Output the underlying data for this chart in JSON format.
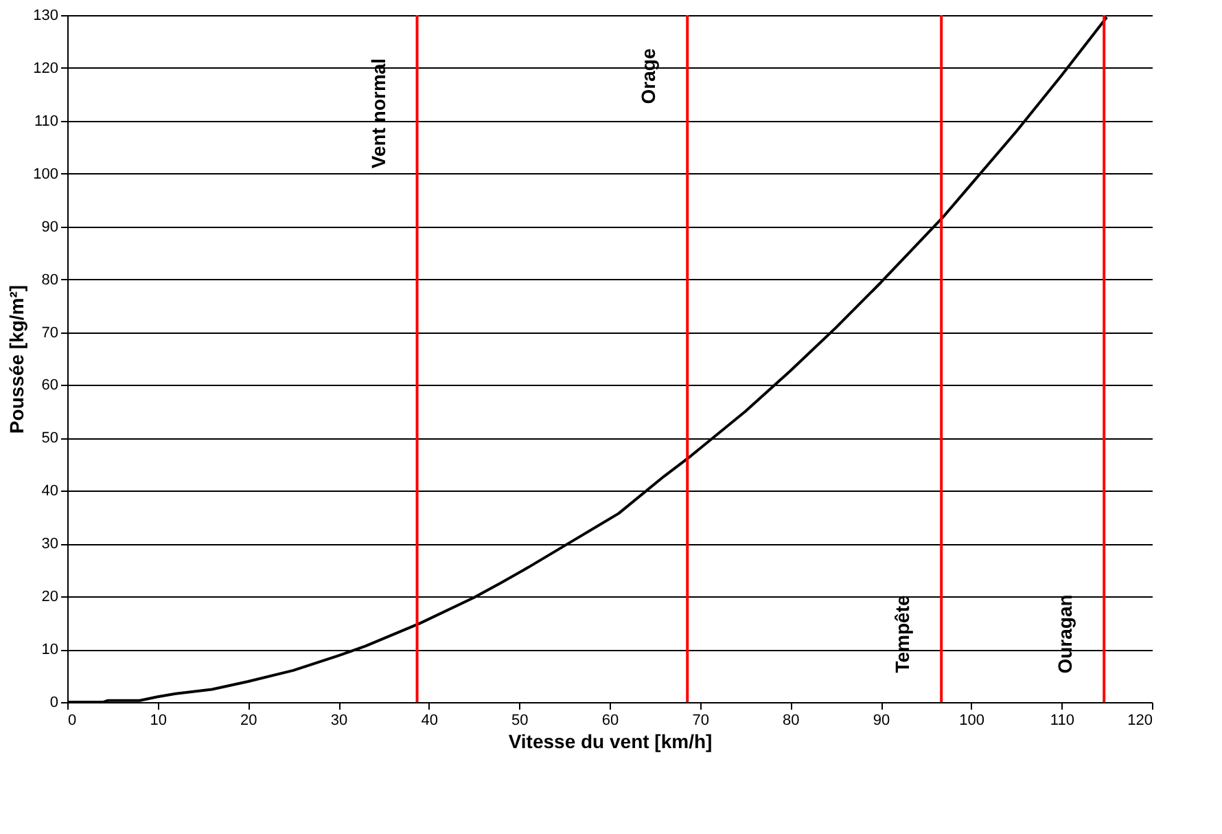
{
  "chart_data": {
    "type": "line",
    "xlabel": "Vitesse du vent [km/h]",
    "ylabel": "Poussée [kg/m²]",
    "x": [
      0,
      4,
      4.5,
      8,
      10,
      12,
      16,
      20,
      25,
      30,
      33,
      39,
      45,
      48,
      51,
      56,
      61,
      66,
      69,
      75,
      80,
      85,
      90,
      94,
      97,
      100,
      105,
      110,
      115
    ],
    "series": [
      {
        "color": "#000000",
        "values": [
          0,
          0,
          0.3,
          0.3,
          1,
          1.6,
          2.4,
          3.9,
          6,
          8.8,
          10.6,
          14.9,
          19.8,
          22.6,
          25.5,
          30.6,
          35.7,
          42.7,
          46.6,
          55,
          62.7,
          70.8,
          79.4,
          86.6,
          92,
          98,
          108,
          118.6,
          129.6
        ]
      }
    ],
    "xlim": [
      0,
      120
    ],
    "xticks": [
      0,
      10,
      20,
      30,
      40,
      50,
      60,
      70,
      80,
      90,
      100,
      110,
      120
    ],
    "ylim": [
      0,
      130
    ],
    "yticks": [
      0,
      10,
      20,
      30,
      40,
      50,
      60,
      70,
      80,
      90,
      100,
      110,
      120,
      130
    ],
    "grid": "y",
    "marker": "none",
    "line_style": "solid",
    "ref_lines": [
      {
        "axis": "x",
        "value": 38.7,
        "label": "Vent normal",
        "color": "#ff0000"
      },
      {
        "axis": "x",
        "value": 68.6,
        "label": "Orage",
        "color": "#ff0000"
      },
      {
        "axis": "x",
        "value": 96.7,
        "label": "Tempête",
        "color": "#ff0000"
      },
      {
        "axis": "x",
        "value": 114.7,
        "label": "Ouragan",
        "color": "#ff0000"
      }
    ]
  }
}
